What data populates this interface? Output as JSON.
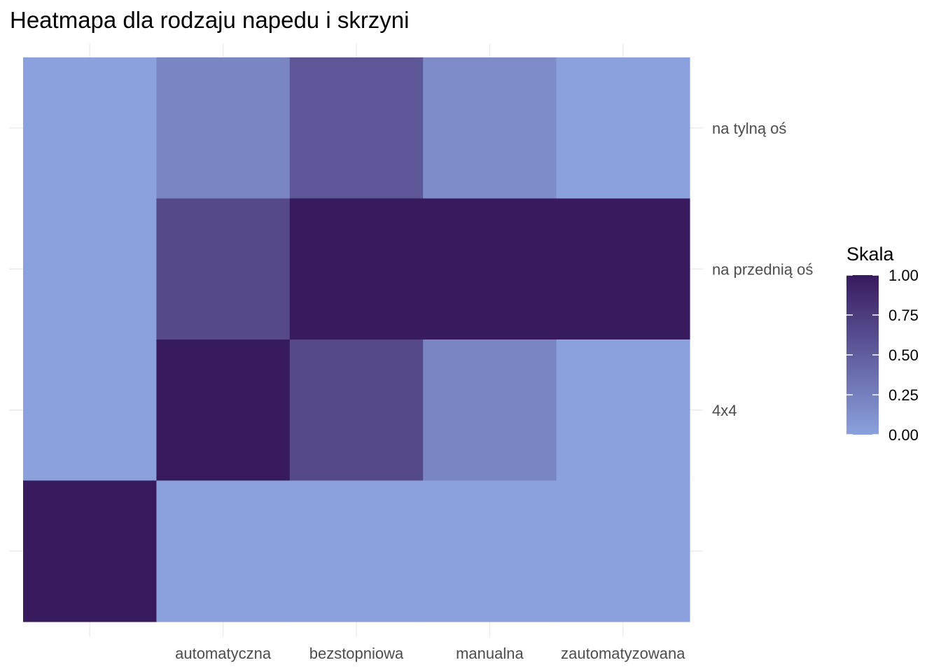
{
  "chart_data": {
    "type": "heatmap",
    "title": "Heatmapa dla rodzaju napedu i skrzyni",
    "xlabel": "",
    "ylabel": "",
    "x_categories": [
      "",
      "automatyczna",
      "bezstopniowa",
      "manualna",
      "zautomatyzowana"
    ],
    "y_categories": [
      "na tylną oś",
      "na przednią oś",
      "4x4",
      ""
    ],
    "values": [
      [
        0.0,
        0.2,
        0.55,
        0.15,
        0.0
      ],
      [
        0.0,
        0.65,
        1.0,
        1.0,
        1.0
      ],
      [
        0.0,
        1.0,
        0.65,
        0.2,
        0.0
      ],
      [
        1.0,
        0.0,
        0.0,
        0.0,
        0.0
      ]
    ],
    "legend": {
      "title": "Skala",
      "ticks": [
        "1.00",
        "0.75",
        "0.50",
        "0.25",
        "0.00"
      ],
      "tick_values": [
        1.0,
        0.75,
        0.5,
        0.25,
        0.0
      ],
      "placement": "right",
      "low_color": "#8aa1dd",
      "high_color": "#381a5e"
    },
    "grid": true
  }
}
